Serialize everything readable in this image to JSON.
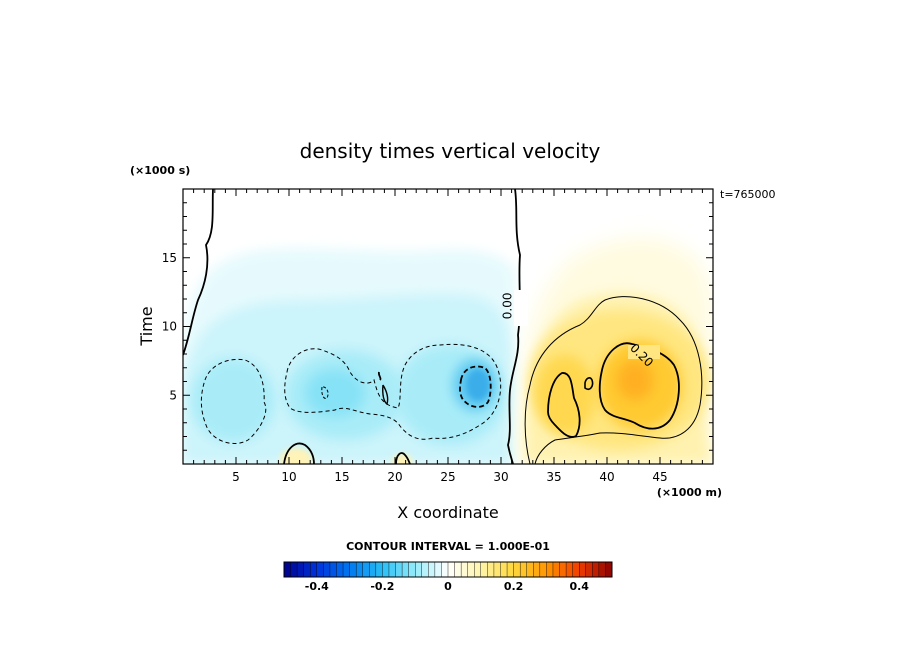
{
  "chart_data": {
    "type": "heatmap",
    "title": "density times vertical velocity",
    "xlabel": "X coordinate",
    "ylabel": "Time",
    "x_scale_label": "(×1000 m)",
    "y_scale_label": "(×1000 s)",
    "time_stamp": "t=765000",
    "xlim": [
      0,
      50
    ],
    "ylim": [
      0,
      20
    ],
    "x_ticks": [
      5,
      10,
      15,
      20,
      25,
      30,
      35,
      40,
      45
    ],
    "y_ticks": [
      5,
      10,
      15
    ],
    "contour_interval_text": "CONTOUR INTERVAL = 1.000E-01",
    "contour_labels": [
      {
        "text": "0.00",
        "x": 31.0,
        "y": 11.5
      },
      {
        "text": "0.20",
        "x": 43.0,
        "y": 7.7
      }
    ],
    "colorbar": {
      "range": [
        -0.5,
        0.5
      ],
      "ticks": [
        -0.4,
        -0.2,
        0,
        0.2,
        0.4
      ],
      "tick_labels": [
        "-0.4",
        "-0.2",
        "0",
        "0.2",
        "0.4"
      ]
    },
    "features": [
      {
        "sign": "negative",
        "x": 4.5,
        "y": 4.5,
        "peak": -0.12
      },
      {
        "sign": "negative",
        "x": 15.0,
        "y": 5.5,
        "peak": -0.14
      },
      {
        "sign": "negative",
        "x": 27.5,
        "y": 5.0,
        "peak": -0.22
      },
      {
        "sign": "positive",
        "x": 35.0,
        "y": 4.5,
        "peak": 0.22
      },
      {
        "sign": "positive",
        "x": 42.0,
        "y": 5.0,
        "peak": 0.31
      }
    ]
  }
}
